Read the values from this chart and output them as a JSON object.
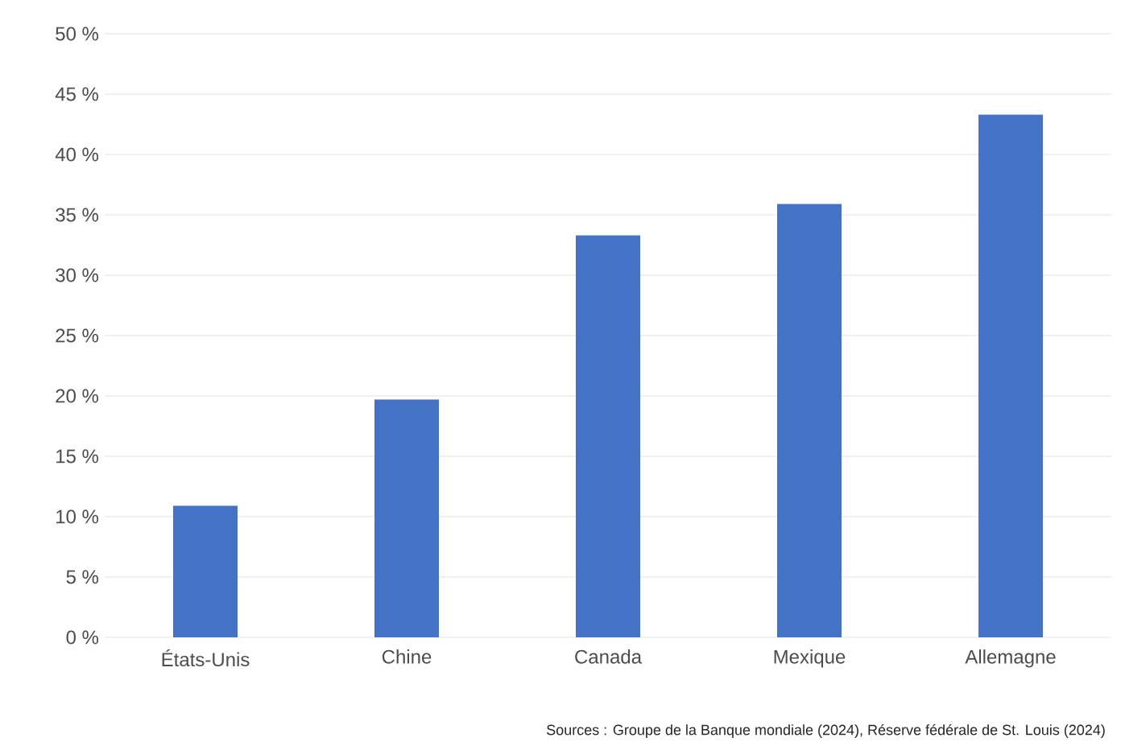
{
  "chart_data": {
    "type": "bar",
    "categories": [
      "États-Unis",
      "Chine",
      "Canada",
      "Mexique",
      "Allemagne"
    ],
    "values": [
      10.9,
      19.7,
      33.3,
      35.9,
      43.3
    ],
    "color": "#4472c4",
    "ylim": [
      0,
      50
    ],
    "yticks": [
      {
        "value": 0,
        "label": "0 %"
      },
      {
        "value": 5,
        "label": "5 %"
      },
      {
        "value": 10,
        "label": "10 %"
      },
      {
        "value": 15,
        "label": "15 %"
      },
      {
        "value": 20,
        "label": "20 %"
      },
      {
        "value": 25,
        "label": "25 %"
      },
      {
        "value": 30,
        "label": "30 %"
      },
      {
        "value": 35,
        "label": "35 %"
      },
      {
        "value": 40,
        "label": "40 %"
      },
      {
        "value": 45,
        "label": "45 %"
      },
      {
        "value": 50,
        "label": "50 %"
      }
    ],
    "grid": "y",
    "annotations": [
      "Sources : Groupe de la Banque mondiale (2024), Réserve fédérale de St. Louis (2024)"
    ]
  }
}
